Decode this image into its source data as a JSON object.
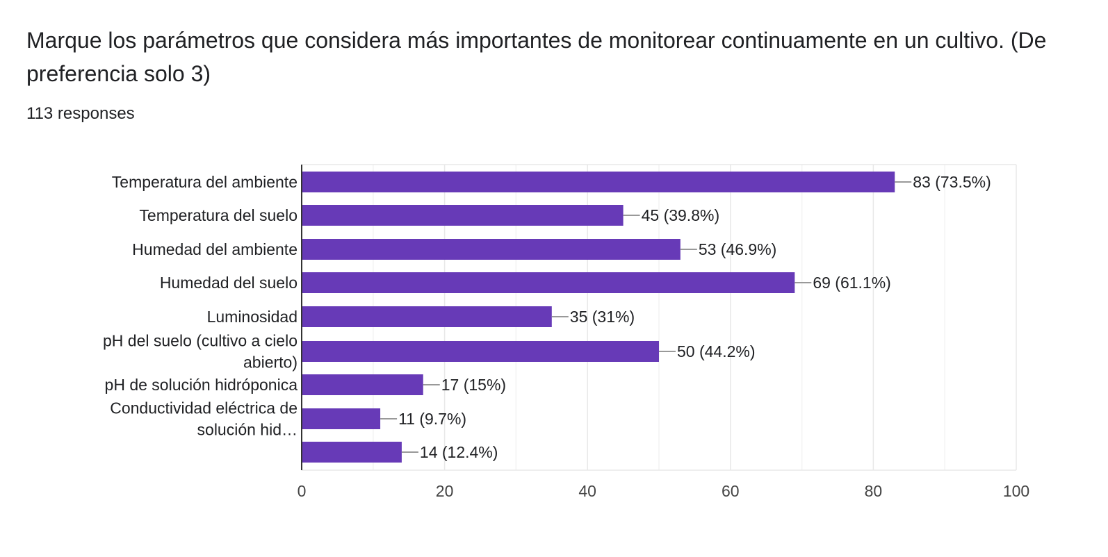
{
  "header": {
    "title": "Marque los parámetros que considera más importantes de monitorear continuamente en un cultivo. (De preferencia solo 3)",
    "responses": "113 responses"
  },
  "colors": {
    "bar": "#673ab7",
    "grid": "#e8e8e8",
    "axis": "#333333",
    "text": "#202124"
  },
  "chart_data": {
    "type": "bar",
    "orientation": "horizontal",
    "categories": [
      [
        "Temperatura del ambiente"
      ],
      [
        "Temperatura del suelo"
      ],
      [
        "Humedad del ambiente"
      ],
      [
        "Humedad del suelo"
      ],
      [
        "Luminosidad"
      ],
      [
        "pH del suelo (cultivo a cielo",
        "abierto)"
      ],
      [
        "pH de solución hidróponica"
      ],
      [
        "Conductividad eléctrica de",
        "solución hid…"
      ],
      []
    ],
    "values": [
      83,
      45,
      53,
      69,
      35,
      50,
      17,
      11,
      14
    ],
    "data_labels": [
      "83 (73.5%)",
      "45 (39.8%)",
      "53 (46.9%)",
      "69 (61.1%)",
      "35 (31%)",
      "50 (44.2%)",
      "17 (15%)",
      "11 (9.7%)",
      "14 (12.4%)"
    ],
    "xlim": [
      0,
      100
    ],
    "xticks": [
      "0",
      "20",
      "40",
      "60",
      "80",
      "100"
    ],
    "grid": true,
    "legend": "none"
  }
}
